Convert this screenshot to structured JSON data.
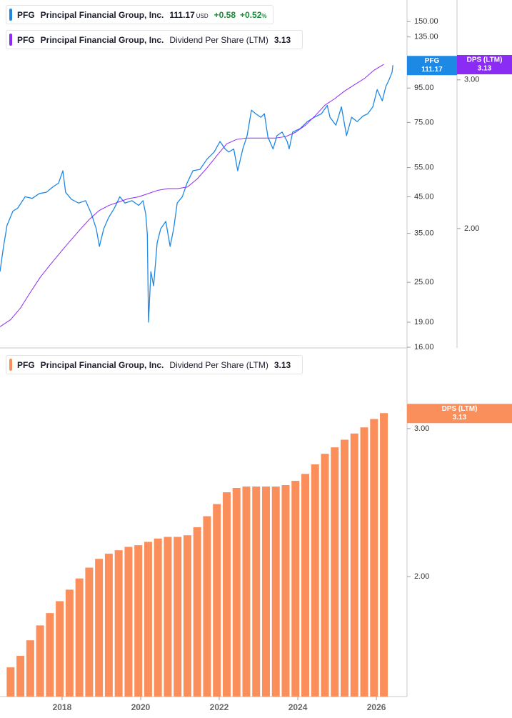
{
  "chart_data": [
    {
      "type": "line",
      "log_scale": true,
      "xlim": [
        2016.42,
        2026.78
      ],
      "ylim": [
        16,
        174
      ],
      "yticks": [
        {
          "value": 150,
          "label": "150.00"
        },
        {
          "value": 135,
          "label": "135.00"
        },
        {
          "value": 95,
          "label": "95.00"
        },
        {
          "value": 75,
          "label": "75.00"
        },
        {
          "value": 55,
          "label": "55.00"
        },
        {
          "value": 45,
          "label": "45.00"
        },
        {
          "value": 35,
          "label": "35.00"
        },
        {
          "value": 25,
          "label": "25.00"
        },
        {
          "value": 19,
          "label": "19.00"
        },
        {
          "value": 16,
          "label": "16.00"
        }
      ],
      "y2lim": [
        1.447,
        3.73
      ],
      "y2ticks": [
        {
          "value": 3,
          "label": "3.00"
        },
        {
          "value": 2,
          "label": "2.00"
        }
      ],
      "series": [
        {
          "ticker": "PFG",
          "name": "Principal Financial Group, Inc.",
          "color": "#1e88e5",
          "last": 111.17,
          "currency": "USD",
          "change": "+0.58",
          "change_pct": "+0.52",
          "pct_sign": "%",
          "badge": "PFG",
          "x": [
            2016.42,
            2016.51,
            2016.6,
            2016.75,
            2016.87,
            2017.06,
            2017.24,
            2017.42,
            2017.6,
            2017.78,
            2017.91,
            2018.02,
            2018.09,
            2018.24,
            2018.42,
            2018.6,
            2018.75,
            2018.87,
            2018.95,
            2019.06,
            2019.18,
            2019.33,
            2019.47,
            2019.6,
            2019.78,
            2019.95,
            2020.06,
            2020.13,
            2020.17,
            2020.2,
            2020.26,
            2020.33,
            2020.42,
            2020.51,
            2020.64,
            2020.75,
            2020.84,
            2020.93,
            2021.06,
            2021.18,
            2021.33,
            2021.51,
            2021.69,
            2021.87,
            2022.02,
            2022.15,
            2022.24,
            2022.37,
            2022.47,
            2022.6,
            2022.71,
            2022.82,
            2022.93,
            2023.06,
            2023.15,
            2023.24,
            2023.37,
            2023.47,
            2023.6,
            2023.73,
            2023.78,
            2023.87,
            2024.06,
            2024.24,
            2024.42,
            2024.6,
            2024.75,
            2024.82,
            2024.97,
            2025.11,
            2025.24,
            2025.37,
            2025.51,
            2025.66,
            2025.78,
            2025.91,
            2026.02,
            2026.15,
            2026.24,
            2026.33,
            2026.4,
            2026.42
          ],
          "values": [
            26.9,
            32,
            37,
            40.8,
            41.6,
            45,
            44.5,
            46,
            46.4,
            48.3,
            49.4,
            53.8,
            46.4,
            44.2,
            43.1,
            43.8,
            39.9,
            36.1,
            32,
            36.1,
            38.9,
            41.6,
            45,
            43.1,
            43.8,
            42.4,
            43.8,
            39.9,
            34.7,
            19,
            26.9,
            24.4,
            32.8,
            36.1,
            38,
            32,
            36.1,
            43.1,
            45,
            49.4,
            53.8,
            54.3,
            58.3,
            61.2,
            65.8,
            62.5,
            61.2,
            62.5,
            53.8,
            62.5,
            68.5,
            81.6,
            79.6,
            77.7,
            79.6,
            67.8,
            62.5,
            68.5,
            70.2,
            65.8,
            62.5,
            70.2,
            71.9,
            75.4,
            77.7,
            79.6,
            84.3,
            77.7,
            73.6,
            83.5,
            68.5,
            77.7,
            75.4,
            78.4,
            79.6,
            83.5,
            94,
            87,
            96,
            101,
            106,
            111.17
          ]
        },
        {
          "ticker": "PFG",
          "name": "Principal Financial Group, Inc.",
          "metric": "Dividend Per Share (LTM)",
          "color": "#8b2cf5",
          "axis": "y2",
          "last": 3.13,
          "badge": "DPS (LTM)",
          "x": [
            2016.42,
            2016.69,
            2016.94,
            2017.19,
            2017.44,
            2017.69,
            2017.94,
            2018.19,
            2018.44,
            2018.69,
            2018.94,
            2019.19,
            2019.44,
            2019.69,
            2019.94,
            2020.19,
            2020.44,
            2020.69,
            2020.94,
            2021.19,
            2021.44,
            2021.69,
            2021.94,
            2022.19,
            2022.44,
            2022.69,
            2022.94,
            2023.19,
            2023.44,
            2023.69,
            2023.94,
            2024.19,
            2024.44,
            2024.69,
            2024.94,
            2025.19,
            2025.44,
            2025.69,
            2025.94,
            2026.19
          ],
          "values": [
            1.53,
            1.56,
            1.61,
            1.68,
            1.75,
            1.81,
            1.87,
            1.93,
            1.99,
            2.05,
            2.1,
            2.13,
            2.15,
            2.17,
            2.18,
            2.2,
            2.22,
            2.23,
            2.23,
            2.24,
            2.29,
            2.36,
            2.44,
            2.52,
            2.55,
            2.56,
            2.56,
            2.56,
            2.56,
            2.57,
            2.6,
            2.65,
            2.72,
            2.8,
            2.85,
            2.91,
            2.96,
            3.01,
            3.08,
            3.13
          ]
        }
      ]
    },
    {
      "type": "bar",
      "log_scale": true,
      "xlim": [
        2016.42,
        2026.78
      ],
      "ylim": [
        1.44,
        3.72
      ],
      "xticks": [
        2018,
        2020,
        2022,
        2024,
        2026
      ],
      "yticks": [
        {
          "value": 3,
          "label": "3.00"
        },
        {
          "value": 2,
          "label": "2.00"
        }
      ],
      "series": [
        {
          "ticker": "PFG",
          "name": "Principal Financial Group, Inc.",
          "metric": "Dividend Per Share (LTM)",
          "color": "#fb8f5c",
          "last": 3.13,
          "badge": "DPS (LTM)",
          "x": [
            2016.69,
            2016.94,
            2017.19,
            2017.44,
            2017.69,
            2017.94,
            2018.19,
            2018.44,
            2018.69,
            2018.94,
            2019.19,
            2019.44,
            2019.69,
            2019.94,
            2020.19,
            2020.44,
            2020.69,
            2020.94,
            2021.19,
            2021.44,
            2021.69,
            2021.94,
            2022.19,
            2022.44,
            2022.69,
            2022.94,
            2023.19,
            2023.44,
            2023.69,
            2023.94,
            2024.19,
            2024.44,
            2024.69,
            2024.94,
            2025.19,
            2025.44,
            2025.69,
            2025.94,
            2026.19
          ],
          "values": [
            1.56,
            1.61,
            1.68,
            1.75,
            1.81,
            1.87,
            1.93,
            1.99,
            2.05,
            2.1,
            2.13,
            2.15,
            2.17,
            2.18,
            2.2,
            2.22,
            2.23,
            2.23,
            2.24,
            2.29,
            2.36,
            2.44,
            2.52,
            2.55,
            2.56,
            2.56,
            2.56,
            2.56,
            2.57,
            2.6,
            2.65,
            2.72,
            2.8,
            2.85,
            2.91,
            2.96,
            3.01,
            3.08,
            3.13
          ]
        }
      ]
    }
  ]
}
